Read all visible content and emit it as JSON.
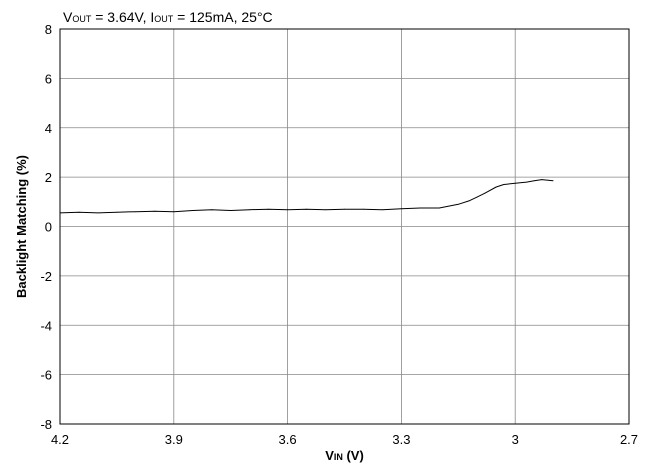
{
  "chart_data": {
    "type": "line",
    "title": {
      "parts": [
        {
          "text": "V"
        },
        {
          "text": "OUT",
          "sub": true
        },
        {
          "text": " = 3.64V, I"
        },
        {
          "text": "OUT",
          "sub": true
        },
        {
          "text": " = 125mA, 25°C"
        }
      ]
    },
    "xlabel": {
      "parts": [
        {
          "text": "V"
        },
        {
          "text": "IN",
          "sub": true
        },
        {
          "text": " (V)"
        }
      ]
    },
    "ylabel": "Backlight Matching (%)",
    "xlim": [
      4.2,
      2.7
    ],
    "ylim": [
      -8,
      8
    ],
    "x_reversed": true,
    "x_ticks": [
      "4.2",
      "3.9",
      "3.6",
      "3.3",
      "3",
      "2.7"
    ],
    "y_ticks": [
      "-8",
      "-6",
      "-4",
      "-2",
      "0",
      "2",
      "4",
      "6",
      "8"
    ],
    "grid": true,
    "series": [
      {
        "color": "#000000",
        "x": [
          4.2,
          4.15,
          4.1,
          4.05,
          4.0,
          3.95,
          3.9,
          3.85,
          3.8,
          3.75,
          3.7,
          3.65,
          3.6,
          3.55,
          3.5,
          3.45,
          3.4,
          3.35,
          3.3,
          3.25,
          3.2,
          3.15,
          3.12,
          3.1,
          3.08,
          3.05,
          3.03,
          3.0,
          2.97,
          2.95,
          2.93,
          2.9
        ],
        "values": [
          0.55,
          0.58,
          0.55,
          0.58,
          0.6,
          0.62,
          0.6,
          0.65,
          0.68,
          0.65,
          0.68,
          0.7,
          0.68,
          0.7,
          0.68,
          0.7,
          0.7,
          0.68,
          0.72,
          0.75,
          0.75,
          0.9,
          1.05,
          1.2,
          1.35,
          1.6,
          1.7,
          1.75,
          1.8,
          1.85,
          1.9,
          1.85
        ]
      }
    ]
  }
}
